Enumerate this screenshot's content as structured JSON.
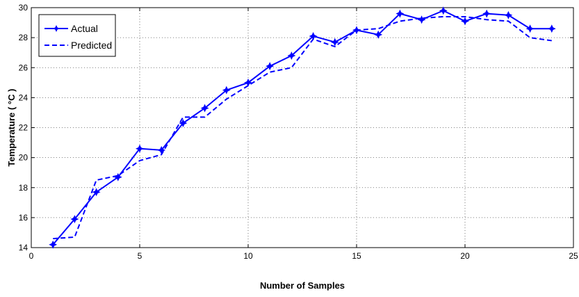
{
  "chart_data": {
    "type": "line",
    "title": "",
    "xlabel": "Number of Samples",
    "ylabel": "Temperature ( °C )",
    "xlim": [
      0,
      25
    ],
    "ylim": [
      14,
      30
    ],
    "xticks": [
      0,
      5,
      10,
      15,
      20,
      25
    ],
    "yticks": [
      14,
      16,
      18,
      20,
      22,
      24,
      26,
      28,
      30
    ],
    "grid": true,
    "legend": "top-left",
    "x": [
      1,
      2,
      3,
      4,
      5,
      6,
      7,
      8,
      9,
      10,
      11,
      12,
      13,
      14,
      15,
      16,
      17,
      18,
      19,
      20,
      21,
      22,
      23,
      24
    ],
    "series": [
      {
        "name": "Actual",
        "style": "solid-with-markers",
        "color": "#0000ff",
        "values": [
          14.2,
          15.9,
          17.7,
          18.7,
          20.6,
          20.5,
          22.3,
          23.3,
          24.5,
          25.0,
          26.1,
          26.8,
          28.1,
          27.7,
          28.5,
          28.2,
          29.6,
          29.2,
          29.8,
          29.1,
          29.6,
          29.5,
          28.6,
          28.6
        ]
      },
      {
        "name": "Predicted",
        "style": "dashed",
        "color": "#0000ff",
        "values": [
          14.6,
          14.7,
          18.5,
          18.8,
          19.8,
          20.2,
          22.7,
          22.7,
          23.9,
          24.8,
          25.7,
          26.0,
          27.9,
          27.4,
          28.5,
          28.6,
          29.1,
          29.3,
          29.4,
          29.4,
          29.2,
          29.1,
          28.0,
          27.8
        ]
      }
    ]
  }
}
